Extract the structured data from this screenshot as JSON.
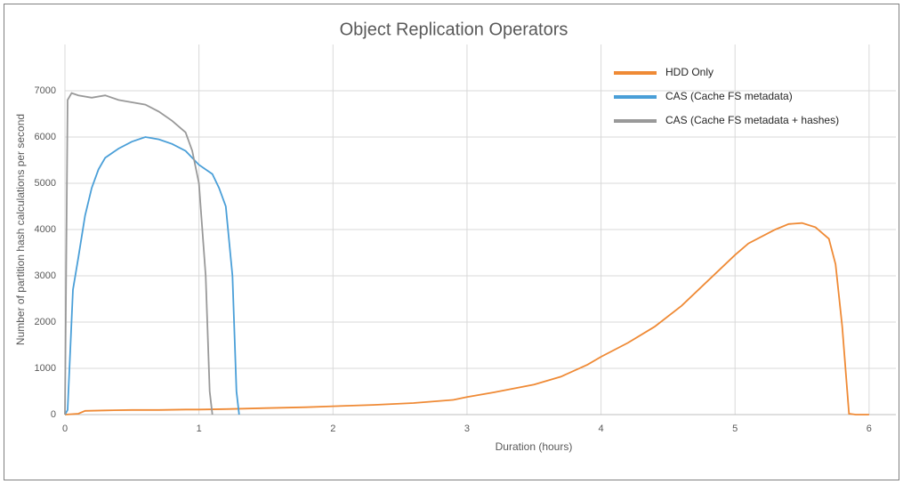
{
  "chart_data": {
    "type": "line",
    "title": "Object Replication Operators",
    "x_label": "Duration (hours)",
    "y_label": "Number of partition hash calculations per second",
    "xlim": [
      0,
      6.2
    ],
    "xticks": [
      0,
      1,
      2,
      3,
      4,
      5,
      6
    ],
    "ylim": [
      0,
      8000
    ],
    "yticks": [
      0,
      1000,
      2000,
      3000,
      4000,
      5000,
      6000,
      7000
    ],
    "grid": true,
    "legend": "upper-right",
    "series": [
      {
        "name": "HDD Only",
        "color": "#ef8a35",
        "x": [
          0,
          0.1,
          0.15,
          0.3,
          0.5,
          0.7,
          0.9,
          1.0,
          1.2,
          1.5,
          1.8,
          2.0,
          2.3,
          2.6,
          2.9,
          3.0,
          3.2,
          3.5,
          3.7,
          3.9,
          4.0,
          4.2,
          4.4,
          4.6,
          4.8,
          5.0,
          5.1,
          5.3,
          5.4,
          5.5,
          5.6,
          5.7,
          5.75,
          5.8,
          5.85,
          5.9,
          6.0
        ],
        "values": [
          0,
          20,
          80,
          90,
          100,
          100,
          110,
          110,
          120,
          140,
          160,
          180,
          210,
          250,
          320,
          380,
          480,
          650,
          820,
          1080,
          1250,
          1550,
          1900,
          2350,
          2900,
          3450,
          3700,
          4000,
          4120,
          4140,
          4050,
          3800,
          3250,
          1900,
          20,
          0,
          0
        ]
      },
      {
        "name": "CAS (Cache FS metadata)",
        "color": "#4a9fd8",
        "x": [
          0,
          0.02,
          0.06,
          0.1,
          0.15,
          0.2,
          0.25,
          0.3,
          0.4,
          0.5,
          0.6,
          0.7,
          0.8,
          0.9,
          1.0,
          1.1,
          1.15,
          1.2,
          1.25,
          1.28,
          1.3
        ],
        "values": [
          0,
          100,
          2700,
          3400,
          4300,
          4900,
          5300,
          5550,
          5750,
          5900,
          6000,
          5950,
          5850,
          5700,
          5400,
          5200,
          4900,
          4500,
          3000,
          500,
          0
        ]
      },
      {
        "name": "CAS (Cache FS metadata + hashes)",
        "color": "#999999",
        "x": [
          0,
          0.02,
          0.05,
          0.1,
          0.2,
          0.3,
          0.4,
          0.5,
          0.6,
          0.7,
          0.8,
          0.9,
          0.95,
          1.0,
          1.05,
          1.08,
          1.1
        ],
        "values": [
          0,
          6800,
          6950,
          6900,
          6850,
          6900,
          6800,
          6750,
          6700,
          6550,
          6350,
          6100,
          5700,
          5000,
          3000,
          500,
          0
        ]
      }
    ]
  }
}
